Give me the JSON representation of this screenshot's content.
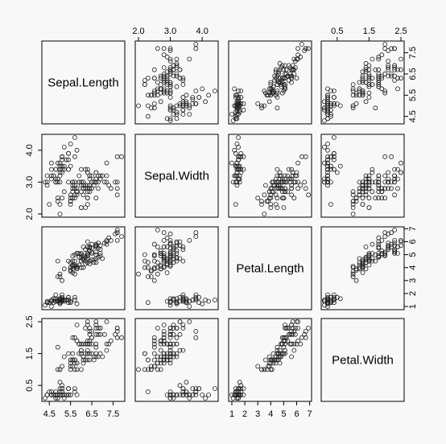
{
  "chart_data": {
    "type": "scatter",
    "title": "",
    "variables": [
      "Sepal.Length",
      "Sepal.Width",
      "Petal.Length",
      "Petal.Width"
    ],
    "ranges": [
      [
        4.3,
        7.9
      ],
      [
        2.0,
        4.4
      ],
      [
        1.0,
        6.9
      ],
      [
        0.1,
        2.5
      ]
    ],
    "ticks": [
      [
        4.5,
        5.5,
        6.5,
        7.5
      ],
      [
        2.0,
        3.0,
        4.0
      ],
      [
        1,
        2,
        3,
        4,
        5,
        6,
        7
      ],
      [
        0.5,
        1.5,
        2.5
      ]
    ],
    "tick_labels": [
      [
        "4.5",
        "5.5",
        "6.5",
        "7.5"
      ],
      [
        "2.0",
        "3.0",
        "4.0"
      ],
      [
        "1",
        "2",
        "3",
        "4",
        "5",
        "6",
        "7"
      ],
      [
        "0.5",
        "1.5",
        "2.5"
      ]
    ],
    "points_format": [
      "Sepal.Length",
      "Sepal.Width",
      "Petal.Length",
      "Petal.Width"
    ],
    "points": [
      [
        5.1,
        3.5,
        1.4,
        0.2
      ],
      [
        4.9,
        3.0,
        1.4,
        0.2
      ],
      [
        4.7,
        3.2,
        1.3,
        0.2
      ],
      [
        4.6,
        3.1,
        1.5,
        0.2
      ],
      [
        5.0,
        3.6,
        1.4,
        0.2
      ],
      [
        5.4,
        3.9,
        1.7,
        0.4
      ],
      [
        4.6,
        3.4,
        1.4,
        0.3
      ],
      [
        5.0,
        3.4,
        1.5,
        0.2
      ],
      [
        4.4,
        2.9,
        1.4,
        0.2
      ],
      [
        4.9,
        3.1,
        1.5,
        0.1
      ],
      [
        5.4,
        3.7,
        1.5,
        0.2
      ],
      [
        4.8,
        3.4,
        1.6,
        0.2
      ],
      [
        4.8,
        3.0,
        1.4,
        0.1
      ],
      [
        4.3,
        3.0,
        1.1,
        0.1
      ],
      [
        5.8,
        4.0,
        1.2,
        0.2
      ],
      [
        5.7,
        4.4,
        1.5,
        0.4
      ],
      [
        5.4,
        3.9,
        1.3,
        0.4
      ],
      [
        5.1,
        3.5,
        1.4,
        0.3
      ],
      [
        5.7,
        3.8,
        1.7,
        0.3
      ],
      [
        5.1,
        3.8,
        1.5,
        0.3
      ],
      [
        5.4,
        3.4,
        1.7,
        0.2
      ],
      [
        5.1,
        3.7,
        1.5,
        0.4
      ],
      [
        4.6,
        3.6,
        1.0,
        0.2
      ],
      [
        5.1,
        3.3,
        1.7,
        0.5
      ],
      [
        4.8,
        3.4,
        1.9,
        0.2
      ],
      [
        5.0,
        3.0,
        1.6,
        0.2
      ],
      [
        5.0,
        3.4,
        1.6,
        0.4
      ],
      [
        5.2,
        3.5,
        1.5,
        0.2
      ],
      [
        5.2,
        3.4,
        1.4,
        0.2
      ],
      [
        4.7,
        3.2,
        1.6,
        0.2
      ],
      [
        4.8,
        3.1,
        1.6,
        0.2
      ],
      [
        5.4,
        3.4,
        1.5,
        0.4
      ],
      [
        5.2,
        4.1,
        1.5,
        0.1
      ],
      [
        5.5,
        4.2,
        1.4,
        0.2
      ],
      [
        4.9,
        3.1,
        1.5,
        0.2
      ],
      [
        5.0,
        3.2,
        1.2,
        0.2
      ],
      [
        5.5,
        3.5,
        1.3,
        0.2
      ],
      [
        4.9,
        3.6,
        1.4,
        0.1
      ],
      [
        4.4,
        3.0,
        1.3,
        0.2
      ],
      [
        5.1,
        3.4,
        1.5,
        0.2
      ],
      [
        5.0,
        3.5,
        1.3,
        0.3
      ],
      [
        4.5,
        2.3,
        1.3,
        0.3
      ],
      [
        4.4,
        3.2,
        1.3,
        0.2
      ],
      [
        5.0,
        3.5,
        1.6,
        0.6
      ],
      [
        5.1,
        3.8,
        1.9,
        0.4
      ],
      [
        4.8,
        3.0,
        1.4,
        0.3
      ],
      [
        5.1,
        3.8,
        1.6,
        0.2
      ],
      [
        4.6,
        3.2,
        1.4,
        0.2
      ],
      [
        5.3,
        3.7,
        1.5,
        0.2
      ],
      [
        5.0,
        3.3,
        1.4,
        0.2
      ],
      [
        7.0,
        3.2,
        4.7,
        1.4
      ],
      [
        6.4,
        3.2,
        4.5,
        1.5
      ],
      [
        6.9,
        3.1,
        4.9,
        1.5
      ],
      [
        5.5,
        2.3,
        4.0,
        1.3
      ],
      [
        6.5,
        2.8,
        4.6,
        1.5
      ],
      [
        5.7,
        2.8,
        4.5,
        1.3
      ],
      [
        6.3,
        3.3,
        4.7,
        1.6
      ],
      [
        4.9,
        2.4,
        3.3,
        1.0
      ],
      [
        6.6,
        2.9,
        4.6,
        1.3
      ],
      [
        5.2,
        2.7,
        3.9,
        1.4
      ],
      [
        5.0,
        2.0,
        3.5,
        1.0
      ],
      [
        5.9,
        3.0,
        4.2,
        1.5
      ],
      [
        6.0,
        2.2,
        4.0,
        1.0
      ],
      [
        6.1,
        2.9,
        4.7,
        1.4
      ],
      [
        5.6,
        2.9,
        3.6,
        1.3
      ],
      [
        6.7,
        3.1,
        4.4,
        1.4
      ],
      [
        5.6,
        3.0,
        4.5,
        1.5
      ],
      [
        5.8,
        2.7,
        4.1,
        1.0
      ],
      [
        6.2,
        2.2,
        4.5,
        1.5
      ],
      [
        5.6,
        2.5,
        3.9,
        1.1
      ],
      [
        5.9,
        3.2,
        4.8,
        1.8
      ],
      [
        6.1,
        2.8,
        4.0,
        1.3
      ],
      [
        6.3,
        2.5,
        4.9,
        1.5
      ],
      [
        6.1,
        2.8,
        4.7,
        1.2
      ],
      [
        6.4,
        2.9,
        4.3,
        1.3
      ],
      [
        6.6,
        3.0,
        4.4,
        1.4
      ],
      [
        6.8,
        2.8,
        4.8,
        1.4
      ],
      [
        6.7,
        3.0,
        5.0,
        1.7
      ],
      [
        6.0,
        2.9,
        4.5,
        1.5
      ],
      [
        5.7,
        2.6,
        3.5,
        1.0
      ],
      [
        5.5,
        2.4,
        3.8,
        1.1
      ],
      [
        5.5,
        2.4,
        3.7,
        1.0
      ],
      [
        5.8,
        2.7,
        3.9,
        1.2
      ],
      [
        6.0,
        2.7,
        5.1,
        1.6
      ],
      [
        5.4,
        3.0,
        4.5,
        1.5
      ],
      [
        6.0,
        3.4,
        4.5,
        1.6
      ],
      [
        6.7,
        3.1,
        4.7,
        1.5
      ],
      [
        6.3,
        2.3,
        4.4,
        1.3
      ],
      [
        5.6,
        3.0,
        4.1,
        1.3
      ],
      [
        5.5,
        2.5,
        4.0,
        1.3
      ],
      [
        5.5,
        2.6,
        4.4,
        1.2
      ],
      [
        6.1,
        3.0,
        4.6,
        1.4
      ],
      [
        5.8,
        2.6,
        4.0,
        1.2
      ],
      [
        5.0,
        2.3,
        3.3,
        1.0
      ],
      [
        5.6,
        2.7,
        4.2,
        1.3
      ],
      [
        5.7,
        3.0,
        4.2,
        1.2
      ],
      [
        5.7,
        2.9,
        4.2,
        1.3
      ],
      [
        6.2,
        2.9,
        4.3,
        1.3
      ],
      [
        5.1,
        2.5,
        3.0,
        1.1
      ],
      [
        5.7,
        2.8,
        4.1,
        1.3
      ],
      [
        6.3,
        3.3,
        6.0,
        2.5
      ],
      [
        5.8,
        2.7,
        5.1,
        1.9
      ],
      [
        7.1,
        3.0,
        5.9,
        2.1
      ],
      [
        6.3,
        2.9,
        5.6,
        1.8
      ],
      [
        6.5,
        3.0,
        5.8,
        2.2
      ],
      [
        7.6,
        3.0,
        6.6,
        2.1
      ],
      [
        4.9,
        2.5,
        4.5,
        1.7
      ],
      [
        7.3,
        2.9,
        6.3,
        1.8
      ],
      [
        6.7,
        2.5,
        5.8,
        1.8
      ],
      [
        7.2,
        3.6,
        6.1,
        2.5
      ],
      [
        6.5,
        3.2,
        5.1,
        2.0
      ],
      [
        6.4,
        2.7,
        5.3,
        1.9
      ],
      [
        6.8,
        3.0,
        5.5,
        2.1
      ],
      [
        5.7,
        2.5,
        5.0,
        2.0
      ],
      [
        5.8,
        2.8,
        5.1,
        2.4
      ],
      [
        6.4,
        3.2,
        5.3,
        2.3
      ],
      [
        6.5,
        3.0,
        5.5,
        1.8
      ],
      [
        7.7,
        3.8,
        6.7,
        2.2
      ],
      [
        7.7,
        2.6,
        6.9,
        2.3
      ],
      [
        6.0,
        2.2,
        5.0,
        1.5
      ],
      [
        6.9,
        3.2,
        5.7,
        2.3
      ],
      [
        5.6,
        2.8,
        4.9,
        2.0
      ],
      [
        7.7,
        2.8,
        6.7,
        2.0
      ],
      [
        6.3,
        2.7,
        4.9,
        1.8
      ],
      [
        6.7,
        3.3,
        5.7,
        2.1
      ],
      [
        7.2,
        3.2,
        6.0,
        1.8
      ],
      [
        6.2,
        2.8,
        4.8,
        1.8
      ],
      [
        6.1,
        3.0,
        4.9,
        1.8
      ],
      [
        6.4,
        2.8,
        5.6,
        2.1
      ],
      [
        7.2,
        3.0,
        5.8,
        1.6
      ],
      [
        7.4,
        2.8,
        6.1,
        1.9
      ],
      [
        7.9,
        3.8,
        6.4,
        2.0
      ],
      [
        6.4,
        2.8,
        5.6,
        2.2
      ],
      [
        6.3,
        2.8,
        5.1,
        1.5
      ],
      [
        6.1,
        2.6,
        5.6,
        1.4
      ],
      [
        7.7,
        3.0,
        6.1,
        2.3
      ],
      [
        6.3,
        3.4,
        5.6,
        2.4
      ],
      [
        6.4,
        3.1,
        5.5,
        1.8
      ],
      [
        6.0,
        3.0,
        4.8,
        1.8
      ],
      [
        6.9,
        3.1,
        5.4,
        2.1
      ],
      [
        6.7,
        3.1,
        5.6,
        2.4
      ],
      [
        6.9,
        3.1,
        5.1,
        2.3
      ],
      [
        5.8,
        2.7,
        5.1,
        1.9
      ],
      [
        6.8,
        3.2,
        5.9,
        2.3
      ],
      [
        6.7,
        3.3,
        5.7,
        2.5
      ],
      [
        6.7,
        3.0,
        5.2,
        2.3
      ],
      [
        6.3,
        2.5,
        5.0,
        1.9
      ],
      [
        6.5,
        3.0,
        5.2,
        2.0
      ],
      [
        6.2,
        3.4,
        5.4,
        2.3
      ],
      [
        5.9,
        3.0,
        5.1,
        1.8
      ]
    ],
    "grid": false,
    "legend": "none"
  }
}
